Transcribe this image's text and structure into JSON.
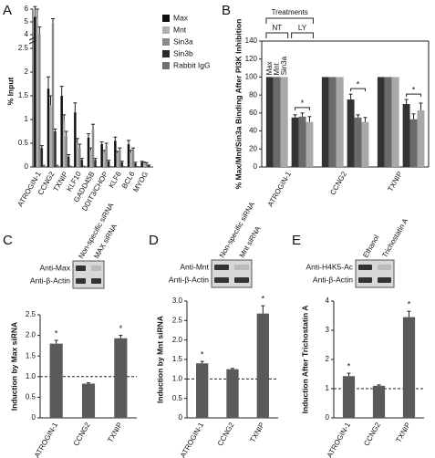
{
  "chart_data": [
    {
      "type": "bar",
      "panel": "A",
      "ylabel": "% Input",
      "categories": [
        "ATROGIN-1",
        "CCNG2",
        "TXNIP",
        "KLF10",
        "GADD45B",
        "DDIT3/CHOP",
        "KLF6",
        "BCL6",
        "MYOG"
      ],
      "series": [
        {
          "name": "Max",
          "color": "#111111",
          "values": [
            5.4,
            1.65,
            1.5,
            1.15,
            0.62,
            0.48,
            0.55,
            0.48,
            0.1
          ],
          "errors": [
            0.8,
            0.25,
            0.2,
            0.2,
            0.08,
            0.05,
            0.08,
            0.08,
            0.02
          ]
        },
        {
          "name": "Mnt",
          "color": "#b0b0b0",
          "values": [
            5.3,
            1.3,
            0.95,
            0.5,
            0.35,
            0.3,
            0.28,
            0.3,
            0.08
          ],
          "errors": [
            0.7,
            0.2,
            0.15,
            0.1,
            0.05,
            0.05,
            0.05,
            0.05,
            0.02
          ]
        },
        {
          "name": "Sin3a",
          "color": "#8a8a8a",
          "values": [
            4.0,
            4.9,
            0.65,
            0.4,
            0.8,
            0.45,
            0.35,
            0.35,
            0.07
          ],
          "errors": [
            0.6,
            0.35,
            0.1,
            0.08,
            0.1,
            0.05,
            0.05,
            0.05,
            0.02
          ]
        },
        {
          "name": "Sin3b",
          "color": "#2a2a2a",
          "values": [
            0.4,
            0.75,
            0.22,
            0.15,
            0.15,
            0.12,
            0.1,
            0.08,
            0.03
          ],
          "errors": [
            0.05,
            0.05,
            0.04,
            0.03,
            0.03,
            0.02,
            0.02,
            0.02,
            0.01
          ]
        },
        {
          "name": "Rabbit IgG",
          "color": "#707070",
          "values": [
            0.05,
            0.05,
            0.03,
            0.03,
            0.02,
            0.02,
            0.02,
            0.02,
            0.01
          ]
        }
      ],
      "ylim": [
        0,
        6
      ],
      "yticks": [
        0,
        0.5,
        1,
        1.5,
        2,
        2.5,
        4,
        5,
        6
      ]
    },
    {
      "type": "grouped-bar",
      "panel": "B",
      "ylabel": "% Max/Mnt/Sin3a Binding After PI3K Inhibition",
      "categories": [
        "ATROGIN-1",
        "CCNG2",
        "TXNIP"
      ],
      "legend_title": "Treatments",
      "groups": [
        {
          "label": "NT",
          "series": [
            {
              "name": "Max",
              "color": "#333333",
              "values": [
                100,
                100,
                100
              ]
            },
            {
              "name": "Mnt",
              "color": "#6a6a6a",
              "values": [
                100,
                100,
                100
              ]
            },
            {
              "name": "Sin3a",
              "color": "#a8a8a8",
              "values": [
                100,
                100,
                100
              ]
            }
          ]
        },
        {
          "label": "LY",
          "series": [
            {
              "color": "#333333",
              "values": [
                55,
                75,
                70
              ],
              "errors": [
                3,
                6,
                5
              ]
            },
            {
              "color": "#6a6a6a",
              "values": [
                56,
                55,
                53
              ],
              "errors": [
                4,
                3,
                6
              ]
            },
            {
              "color": "#a8a8a8",
              "values": [
                50,
                50,
                63
              ],
              "errors": [
                6,
                5,
                8
              ]
            }
          ]
        }
      ],
      "stars": [
        "*",
        "*",
        "*"
      ],
      "ylim": [
        0,
        140
      ],
      "yticks": [
        0,
        20,
        40,
        60,
        80,
        100,
        120,
        140
      ]
    },
    {
      "type": "bar",
      "panel": "C",
      "ylabel": "Induction by Max siRNA",
      "blot": {
        "rows": [
          "Anti-Max",
          "Anti-β-Actin"
        ],
        "lanes": [
          "Non-specific siRNA",
          "MAX siRNA"
        ]
      },
      "categories": [
        "ATROGIN-1",
        "CCNG2",
        "TXNIP"
      ],
      "values": [
        1.8,
        0.83,
        1.93
      ],
      "errors": [
        0.08,
        0.02,
        0.07
      ],
      "stars": [
        "*",
        null,
        "*"
      ],
      "color": "#5a5a5a",
      "reference_line": 1,
      "ylim": [
        0,
        2.5
      ],
      "yticks": [
        0,
        0.5,
        {
          "value": 1,
          "label": "1.0"
        },
        1.5,
        {
          "value": 2,
          "label": "2.0"
        },
        2.5
      ]
    },
    {
      "type": "bar",
      "panel": "D",
      "ylabel": "Induction by Mnt siRNA",
      "blot": {
        "rows": [
          "Anti-Mnt",
          "Anti-β-Actin"
        ],
        "lanes": [
          "Non-specific siRNA",
          "Mnt siRNA"
        ]
      },
      "categories": [
        "ATROGIN-1",
        "CCNG2",
        "TXNIP"
      ],
      "values": [
        1.4,
        1.25,
        2.68
      ],
      "errors": [
        0.05,
        0.02,
        0.2
      ],
      "stars": [
        "*",
        null,
        "*"
      ],
      "color": "#5a5a5a",
      "reference_line": 1,
      "ylim": [
        0,
        3
      ],
      "yticks": [
        0,
        0.5,
        {
          "value": 1,
          "label": "1.0"
        },
        1.5,
        {
          "value": 2,
          "label": "2.0"
        },
        2.5,
        {
          "value": 3,
          "label": "3.0"
        }
      ]
    },
    {
      "type": "bar",
      "panel": "E",
      "ylabel": "Induction After Trichostatin A",
      "blot": {
        "rows": [
          "Anti-H4K5-Ac",
          "Anti-β-Actin"
        ],
        "lanes": [
          "Ethanol",
          "Trichostatin A"
        ]
      },
      "categories": [
        "ATROGIN-1",
        "CCNG2",
        "TXNIP"
      ],
      "values": [
        1.43,
        1.1,
        3.45
      ],
      "errors": [
        0.1,
        0.03,
        0.2
      ],
      "stars": [
        "*",
        null,
        "*"
      ],
      "color": "#5a5a5a",
      "reference_line": 1,
      "ylim": [
        0,
        4
      ],
      "yticks": [
        0,
        1,
        2,
        3,
        4
      ]
    }
  ]
}
